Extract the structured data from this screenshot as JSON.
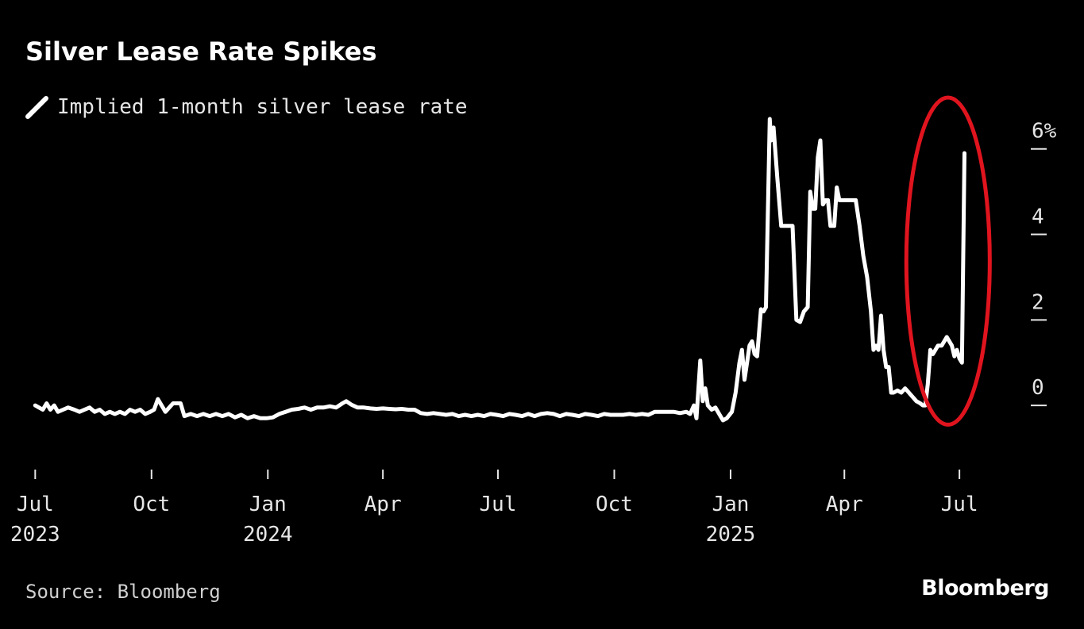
{
  "title": "Silver Lease Rate Spikes",
  "legend": {
    "label": "Implied 1-month silver lease rate",
    "color": "#ffffff"
  },
  "source": "Source: Bloomberg",
  "brand": "Bloomberg",
  "colors": {
    "background": "#000000",
    "line": "#ffffff",
    "highlight": "#e0141e",
    "tick": "#e6e6e6"
  },
  "chart_data": {
    "type": "line",
    "title": "Silver Lease Rate Spikes",
    "legend_position": "top-left",
    "grid": false,
    "y_axis": {
      "position": "right",
      "range": [
        -1.5,
        6.7
      ],
      "ticks": [
        {
          "value": 0,
          "label": "0"
        },
        {
          "value": 2,
          "label": "2"
        },
        {
          "value": 4,
          "label": "4"
        },
        {
          "value": 6,
          "label": "6%"
        }
      ]
    },
    "x_axis": {
      "range": [
        "2023-06-22",
        "2025-08-12"
      ],
      "ticks": [
        {
          "date": "2023-07-01",
          "label": "Jul",
          "year": "2023"
        },
        {
          "date": "2023-10-01",
          "label": "Oct",
          "year": ""
        },
        {
          "date": "2024-01-01",
          "label": "Jan",
          "year": "2024"
        },
        {
          "date": "2024-04-01",
          "label": "Apr",
          "year": ""
        },
        {
          "date": "2024-07-01",
          "label": "Jul",
          "year": ""
        },
        {
          "date": "2024-10-01",
          "label": "Oct",
          "year": ""
        },
        {
          "date": "2025-01-01",
          "label": "Jan",
          "year": "2025"
        },
        {
          "date": "2025-04-01",
          "label": "Apr",
          "year": ""
        },
        {
          "date": "2025-07-01",
          "label": "Jul",
          "year": ""
        }
      ]
    },
    "annotations": [
      {
        "type": "ellipse-highlight",
        "color": "#e0141e",
        "date_range": [
          "2025-05-20",
          "2025-07-25"
        ],
        "value_range": [
          -0.45,
          7.2
        ]
      }
    ],
    "series": [
      {
        "name": "Implied 1-month silver lease rate",
        "color": "#ffffff",
        "points": [
          [
            "2023-07-01",
            0.0
          ],
          [
            "2023-07-04",
            -0.05
          ],
          [
            "2023-07-07",
            -0.1
          ],
          [
            "2023-07-10",
            0.05
          ],
          [
            "2023-07-13",
            -0.1
          ],
          [
            "2023-07-16",
            0.0
          ],
          [
            "2023-07-19",
            -0.15
          ],
          [
            "2023-07-23",
            -0.1
          ],
          [
            "2023-07-27",
            -0.05
          ],
          [
            "2023-08-01",
            -0.1
          ],
          [
            "2023-08-05",
            -0.15
          ],
          [
            "2023-08-09",
            -0.1
          ],
          [
            "2023-08-13",
            -0.05
          ],
          [
            "2023-08-17",
            -0.15
          ],
          [
            "2023-08-21",
            -0.1
          ],
          [
            "2023-08-25",
            -0.2
          ],
          [
            "2023-08-29",
            -0.15
          ],
          [
            "2023-09-02",
            -0.2
          ],
          [
            "2023-09-06",
            -0.15
          ],
          [
            "2023-09-10",
            -0.2
          ],
          [
            "2023-09-14",
            -0.1
          ],
          [
            "2023-09-18",
            -0.15
          ],
          [
            "2023-09-22",
            -0.1
          ],
          [
            "2023-09-26",
            -0.2
          ],
          [
            "2023-09-30",
            -0.15
          ],
          [
            "2023-10-03",
            -0.1
          ],
          [
            "2023-10-06",
            0.15
          ],
          [
            "2023-10-09",
            0.0
          ],
          [
            "2023-10-12",
            -0.15
          ],
          [
            "2023-10-15",
            -0.05
          ],
          [
            "2023-10-18",
            0.05
          ],
          [
            "2023-10-21",
            0.05
          ],
          [
            "2023-10-24",
            0.05
          ],
          [
            "2023-10-27",
            -0.25
          ],
          [
            "2023-11-01",
            -0.2
          ],
          [
            "2023-11-06",
            -0.25
          ],
          [
            "2023-11-11",
            -0.2
          ],
          [
            "2023-11-16",
            -0.25
          ],
          [
            "2023-11-21",
            -0.2
          ],
          [
            "2023-11-26",
            -0.25
          ],
          [
            "2023-12-01",
            -0.2
          ],
          [
            "2023-12-06",
            -0.28
          ],
          [
            "2023-12-11",
            -0.22
          ],
          [
            "2023-12-16",
            -0.3
          ],
          [
            "2023-12-21",
            -0.25
          ],
          [
            "2023-12-26",
            -0.3
          ],
          [
            "2023-12-31",
            -0.3
          ],
          [
            "2024-01-05",
            -0.28
          ],
          [
            "2024-01-10",
            -0.2
          ],
          [
            "2024-01-15",
            -0.15
          ],
          [
            "2024-01-20",
            -0.1
          ],
          [
            "2024-01-25",
            -0.08
          ],
          [
            "2024-01-30",
            -0.05
          ],
          [
            "2024-02-04",
            -0.1
          ],
          [
            "2024-02-09",
            -0.05
          ],
          [
            "2024-02-14",
            -0.05
          ],
          [
            "2024-02-19",
            -0.02
          ],
          [
            "2024-02-24",
            -0.05
          ],
          [
            "2024-02-29",
            0.05
          ],
          [
            "2024-03-03",
            0.1
          ],
          [
            "2024-03-07",
            0.02
          ],
          [
            "2024-03-12",
            -0.05
          ],
          [
            "2024-03-17",
            -0.05
          ],
          [
            "2024-03-22",
            -0.07
          ],
          [
            "2024-03-27",
            -0.08
          ],
          [
            "2024-04-01",
            -0.07
          ],
          [
            "2024-04-06",
            -0.08
          ],
          [
            "2024-04-11",
            -0.09
          ],
          [
            "2024-04-16",
            -0.08
          ],
          [
            "2024-04-21",
            -0.1
          ],
          [
            "2024-04-26",
            -0.1
          ],
          [
            "2024-05-01",
            -0.18
          ],
          [
            "2024-05-06",
            -0.2
          ],
          [
            "2024-05-11",
            -0.18
          ],
          [
            "2024-05-16",
            -0.2
          ],
          [
            "2024-05-21",
            -0.22
          ],
          [
            "2024-05-26",
            -0.2
          ],
          [
            "2024-05-31",
            -0.25
          ],
          [
            "2024-06-05",
            -0.22
          ],
          [
            "2024-06-10",
            -0.25
          ],
          [
            "2024-06-15",
            -0.22
          ],
          [
            "2024-06-20",
            -0.25
          ],
          [
            "2024-06-25",
            -0.2
          ],
          [
            "2024-06-30",
            -0.22
          ],
          [
            "2024-07-05",
            -0.25
          ],
          [
            "2024-07-10",
            -0.2
          ],
          [
            "2024-07-15",
            -0.22
          ],
          [
            "2024-07-20",
            -0.25
          ],
          [
            "2024-07-25",
            -0.2
          ],
          [
            "2024-07-30",
            -0.25
          ],
          [
            "2024-08-04",
            -0.2
          ],
          [
            "2024-08-09",
            -0.18
          ],
          [
            "2024-08-14",
            -0.2
          ],
          [
            "2024-08-19",
            -0.25
          ],
          [
            "2024-08-24",
            -0.2
          ],
          [
            "2024-08-29",
            -0.22
          ],
          [
            "2024-09-03",
            -0.25
          ],
          [
            "2024-09-08",
            -0.2
          ],
          [
            "2024-09-13",
            -0.22
          ],
          [
            "2024-09-18",
            -0.25
          ],
          [
            "2024-09-23",
            -0.2
          ],
          [
            "2024-09-28",
            -0.22
          ],
          [
            "2024-10-03",
            -0.22
          ],
          [
            "2024-10-08",
            -0.22
          ],
          [
            "2024-10-13",
            -0.2
          ],
          [
            "2024-10-18",
            -0.22
          ],
          [
            "2024-10-23",
            -0.2
          ],
          [
            "2024-10-28",
            -0.22
          ],
          [
            "2024-11-02",
            -0.15
          ],
          [
            "2024-11-07",
            -0.15
          ],
          [
            "2024-11-12",
            -0.15
          ],
          [
            "2024-11-17",
            -0.15
          ],
          [
            "2024-11-22",
            -0.18
          ],
          [
            "2024-11-27",
            -0.15
          ],
          [
            "2024-11-30",
            -0.2
          ],
          [
            "2024-12-03",
            0.0
          ],
          [
            "2024-12-05",
            -0.3
          ],
          [
            "2024-12-08",
            1.05
          ],
          [
            "2024-12-10",
            0.1
          ],
          [
            "2024-12-12",
            0.4
          ],
          [
            "2024-12-14",
            0.0
          ],
          [
            "2024-12-17",
            -0.1
          ],
          [
            "2024-12-20",
            -0.05
          ],
          [
            "2024-12-23",
            -0.2
          ],
          [
            "2024-12-26",
            -0.35
          ],
          [
            "2024-12-29",
            -0.3
          ],
          [
            "2025-01-02",
            -0.15
          ],
          [
            "2025-01-05",
            0.3
          ],
          [
            "2025-01-08",
            1.0
          ],
          [
            "2025-01-10",
            1.3
          ],
          [
            "2025-01-12",
            0.6
          ],
          [
            "2025-01-14",
            1.0
          ],
          [
            "2025-01-16",
            1.4
          ],
          [
            "2025-01-18",
            1.5
          ],
          [
            "2025-01-20",
            1.2
          ],
          [
            "2025-01-22",
            1.15
          ],
          [
            "2025-01-25",
            2.25
          ],
          [
            "2025-01-27",
            2.2
          ],
          [
            "2025-01-29",
            2.3
          ],
          [
            "2025-02-01",
            6.7
          ],
          [
            "2025-02-02",
            6.2
          ],
          [
            "2025-02-04",
            6.5
          ],
          [
            "2025-02-07",
            5.3
          ],
          [
            "2025-02-10",
            4.2
          ],
          [
            "2025-02-13",
            4.2
          ],
          [
            "2025-02-16",
            4.2
          ],
          [
            "2025-02-19",
            4.2
          ],
          [
            "2025-02-22",
            2.0
          ],
          [
            "2025-02-25",
            1.95
          ],
          [
            "2025-02-28",
            2.2
          ],
          [
            "2025-03-03",
            2.3
          ],
          [
            "2025-03-05",
            5.0
          ],
          [
            "2025-03-07",
            4.6
          ],
          [
            "2025-03-09",
            4.6
          ],
          [
            "2025-03-11",
            5.8
          ],
          [
            "2025-03-13",
            6.2
          ],
          [
            "2025-03-15",
            4.7
          ],
          [
            "2025-03-17",
            4.8
          ],
          [
            "2025-03-19",
            4.8
          ],
          [
            "2025-03-21",
            4.2
          ],
          [
            "2025-03-24",
            4.2
          ],
          [
            "2025-03-26",
            5.1
          ],
          [
            "2025-03-28",
            4.8
          ],
          [
            "2025-03-31",
            4.8
          ],
          [
            "2025-04-03",
            4.8
          ],
          [
            "2025-04-06",
            4.8
          ],
          [
            "2025-04-08",
            4.8
          ],
          [
            "2025-04-10",
            4.8
          ],
          [
            "2025-04-13",
            4.2
          ],
          [
            "2025-04-16",
            3.5
          ],
          [
            "2025-04-19",
            3.0
          ],
          [
            "2025-04-22",
            2.2
          ],
          [
            "2025-04-24",
            1.3
          ],
          [
            "2025-04-26",
            1.4
          ],
          [
            "2025-04-28",
            1.3
          ],
          [
            "2025-04-30",
            2.1
          ],
          [
            "2025-05-02",
            1.3
          ],
          [
            "2025-05-04",
            0.9
          ],
          [
            "2025-05-06",
            0.9
          ],
          [
            "2025-05-08",
            0.3
          ],
          [
            "2025-05-10",
            0.3
          ],
          [
            "2025-05-13",
            0.35
          ],
          [
            "2025-05-16",
            0.3
          ],
          [
            "2025-05-19",
            0.4
          ],
          [
            "2025-05-22",
            0.3
          ],
          [
            "2025-05-25",
            0.2
          ],
          [
            "2025-05-28",
            0.1
          ],
          [
            "2025-05-31",
            0.05
          ],
          [
            "2025-06-02",
            0.0
          ],
          [
            "2025-06-04",
            0.0
          ],
          [
            "2025-06-06",
            0.5
          ],
          [
            "2025-06-08",
            1.3
          ],
          [
            "2025-06-10",
            1.2
          ],
          [
            "2025-06-12",
            1.3
          ],
          [
            "2025-06-14",
            1.4
          ],
          [
            "2025-06-17",
            1.4
          ],
          [
            "2025-06-19",
            1.5
          ],
          [
            "2025-06-21",
            1.6
          ],
          [
            "2025-06-23",
            1.5
          ],
          [
            "2025-06-25",
            1.4
          ],
          [
            "2025-06-27",
            1.15
          ],
          [
            "2025-06-29",
            1.3
          ],
          [
            "2025-07-01",
            1.1
          ],
          [
            "2025-07-03",
            1.0
          ],
          [
            "2025-07-05",
            5.9
          ]
        ]
      }
    ]
  }
}
